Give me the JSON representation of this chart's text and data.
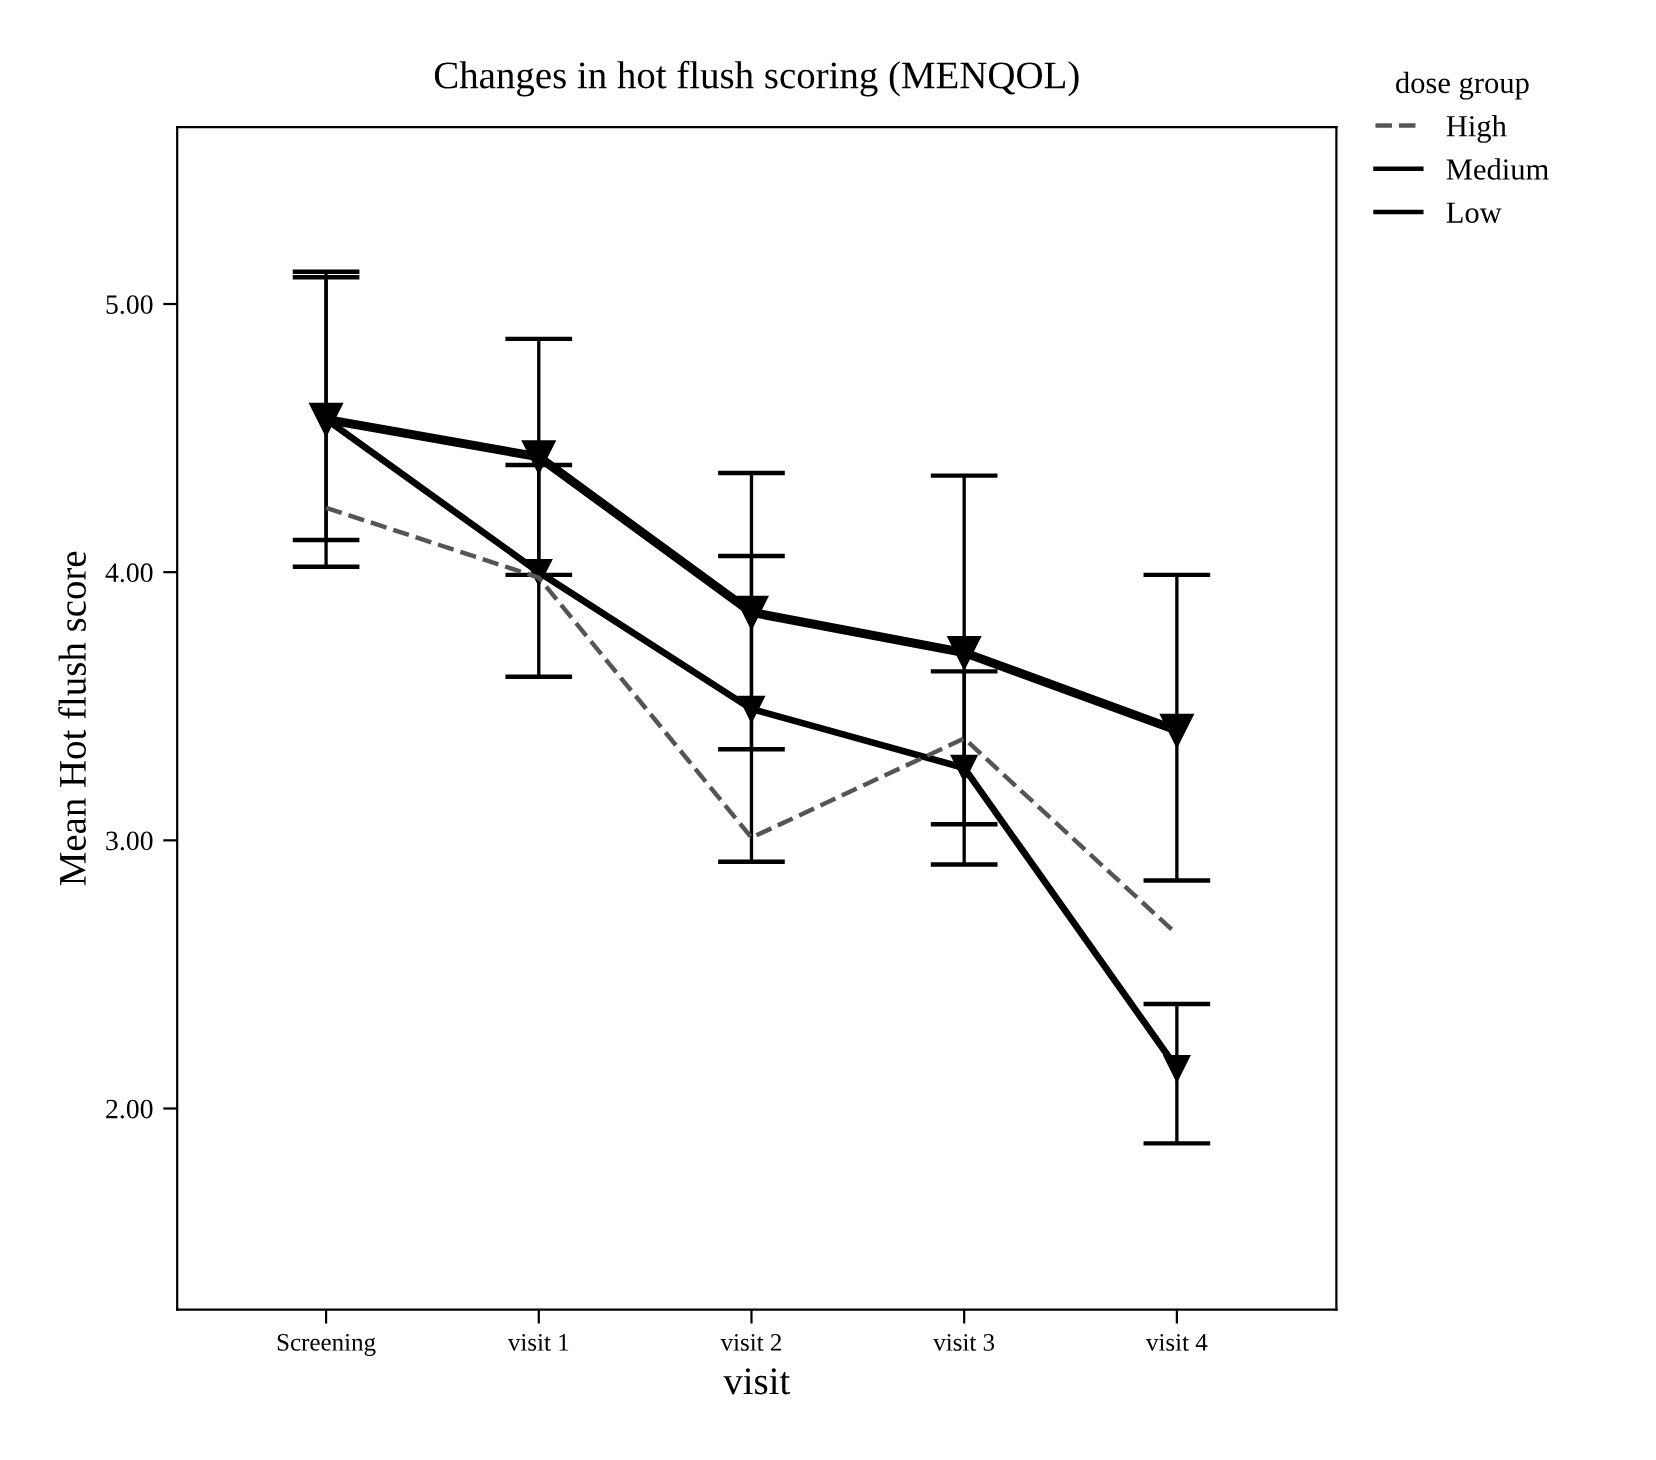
{
  "chart_data": {
    "type": "line",
    "title": "Changes in hot flush scoring (MENQOL)",
    "xlabel": "visit",
    "ylabel": "Mean Hot flush score",
    "legend_title": "dose group",
    "legend": "top right",
    "grid": false,
    "marker": "triangle",
    "categories": [
      "Screening",
      "visit 1",
      "visit 2",
      "visit 3",
      "visit 4"
    ],
    "ylim": [
      1.25,
      5.66
    ],
    "yticks": [
      {
        "value": 2,
        "label": "2.00"
      },
      {
        "value": 3,
        "label": "3.00"
      },
      {
        "value": 4,
        "label": "4.00"
      },
      {
        "value": 5,
        "label": "5.00"
      }
    ],
    "series": [
      {
        "name": "High",
        "color": "#555555",
        "line_style": "dashed",
        "marker": "none",
        "values": [
          4.24,
          3.98,
          3.01,
          3.38,
          2.65
        ]
      },
      {
        "name": "Medium",
        "color": "#000000",
        "line_style": "solid",
        "values": [
          4.57,
          4.0,
          3.49,
          3.27,
          2.15
        ],
        "errors": [
          [
            4.12,
            5.1
          ],
          [
            3.61,
            4.4
          ],
          [
            2.92,
            4.06
          ],
          [
            2.91,
            3.63
          ],
          [
            1.87,
            2.39
          ]
        ]
      },
      {
        "name": "Low",
        "color": "#000000",
        "line_style": "solid",
        "values": [
          4.57,
          4.43,
          3.85,
          3.7,
          3.41
        ],
        "errors": [
          [
            4.02,
            5.12
          ],
          [
            3.99,
            4.87
          ],
          [
            3.34,
            4.37
          ],
          [
            3.06,
            4.36
          ],
          [
            2.85,
            3.99
          ]
        ]
      }
    ]
  }
}
